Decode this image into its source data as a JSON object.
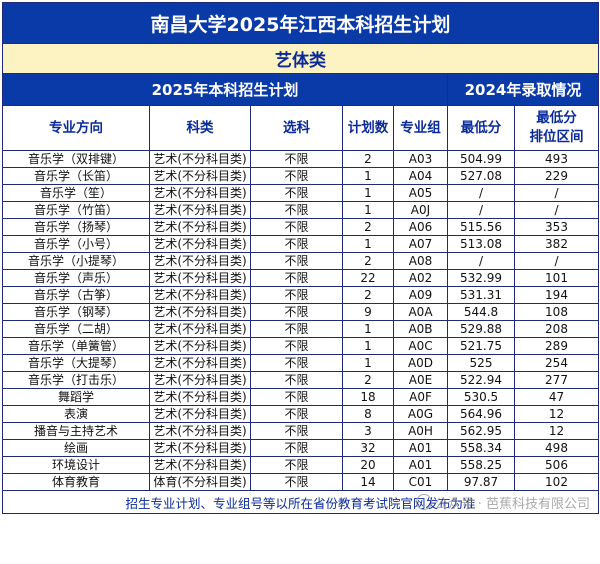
{
  "title": "南昌大学2025年江西本科招生计划",
  "category": "艺体类",
  "section_left": "2025年本科招生计划",
  "section_right": "2024年录取情况",
  "headers": {
    "major": "专业方向",
    "subject_type": "科类",
    "elective": "选科",
    "plan_count": "计划数",
    "major_group": "专业组",
    "min_score": "最低分",
    "min_rank_line1": "最低分",
    "min_rank_line2": "排位区间"
  },
  "rows": [
    {
      "major": "音乐学（双排键）",
      "type": "艺术(不分科目类)",
      "elective": "不限",
      "count": "2",
      "group": "A03",
      "score": "504.99",
      "rank": "493"
    },
    {
      "major": "音乐学（长笛）",
      "type": "艺术(不分科目类)",
      "elective": "不限",
      "count": "1",
      "group": "A04",
      "score": "527.08",
      "rank": "229"
    },
    {
      "major": "音乐学（笙）",
      "type": "艺术(不分科目类)",
      "elective": "不限",
      "count": "1",
      "group": "A05",
      "score": "/",
      "rank": "/"
    },
    {
      "major": "音乐学（竹笛）",
      "type": "艺术(不分科目类)",
      "elective": "不限",
      "count": "1",
      "group": "A0J",
      "score": "/",
      "rank": "/"
    },
    {
      "major": "音乐学（扬琴）",
      "type": "艺术(不分科目类)",
      "elective": "不限",
      "count": "2",
      "group": "A06",
      "score": "515.56",
      "rank": "353"
    },
    {
      "major": "音乐学（小号）",
      "type": "艺术(不分科目类)",
      "elective": "不限",
      "count": "1",
      "group": "A07",
      "score": "513.08",
      "rank": "382"
    },
    {
      "major": "音乐学（小提琴）",
      "type": "艺术(不分科目类)",
      "elective": "不限",
      "count": "2",
      "group": "A08",
      "score": "/",
      "rank": "/"
    },
    {
      "major": "音乐学（声乐）",
      "type": "艺术(不分科目类)",
      "elective": "不限",
      "count": "22",
      "group": "A02",
      "score": "532.99",
      "rank": "101"
    },
    {
      "major": "音乐学（古筝）",
      "type": "艺术(不分科目类)",
      "elective": "不限",
      "count": "2",
      "group": "A09",
      "score": "531.31",
      "rank": "194"
    },
    {
      "major": "音乐学（钢琴）",
      "type": "艺术(不分科目类)",
      "elective": "不限",
      "count": "9",
      "group": "A0A",
      "score": "544.8",
      "rank": "108"
    },
    {
      "major": "音乐学（二胡）",
      "type": "艺术(不分科目类)",
      "elective": "不限",
      "count": "1",
      "group": "A0B",
      "score": "529.88",
      "rank": "208"
    },
    {
      "major": "音乐学（单簧管）",
      "type": "艺术(不分科目类)",
      "elective": "不限",
      "count": "1",
      "group": "A0C",
      "score": "521.75",
      "rank": "289"
    },
    {
      "major": "音乐学（大提琴）",
      "type": "艺术(不分科目类)",
      "elective": "不限",
      "count": "1",
      "group": "A0D",
      "score": "525",
      "rank": "254"
    },
    {
      "major": "音乐学（打击乐）",
      "type": "艺术(不分科目类)",
      "elective": "不限",
      "count": "2",
      "group": "A0E",
      "score": "522.94",
      "rank": "277"
    },
    {
      "major": "舞蹈学",
      "type": "艺术(不分科目类)",
      "elective": "不限",
      "count": "18",
      "group": "A0F",
      "score": "530.5",
      "rank": "47"
    },
    {
      "major": "表演",
      "type": "艺术(不分科目类)",
      "elective": "不限",
      "count": "8",
      "group": "A0G",
      "score": "564.96",
      "rank": "12"
    },
    {
      "major": "播音与主持艺术",
      "type": "艺术(不分科目类)",
      "elective": "不限",
      "count": "3",
      "group": "A0H",
      "score": "562.95",
      "rank": "12"
    },
    {
      "major": "绘画",
      "type": "艺术(不分科目类)",
      "elective": "不限",
      "count": "32",
      "group": "A01",
      "score": "558.34",
      "rank": "498"
    },
    {
      "major": "环境设计",
      "type": "艺术(不分科目类)",
      "elective": "不限",
      "count": "20",
      "group": "A01",
      "score": "558.25",
      "rank": "506"
    },
    {
      "major": "体育教育",
      "type": "体育(不分科目类)",
      "elective": "不限",
      "count": "14",
      "group": "C01",
      "score": "97.87",
      "rank": "102"
    }
  ],
  "footer_note": "招生专业计划、专业组号等以所在省份教育考试院官网发布为准",
  "watermark": "公众号 · 芭蕉科技有限公司",
  "colors": {
    "header_blue": "#0a3aa8",
    "category_bg": "#fdf2c2",
    "text_blue": "#0a2a9a",
    "border": "#1f2a7a"
  }
}
